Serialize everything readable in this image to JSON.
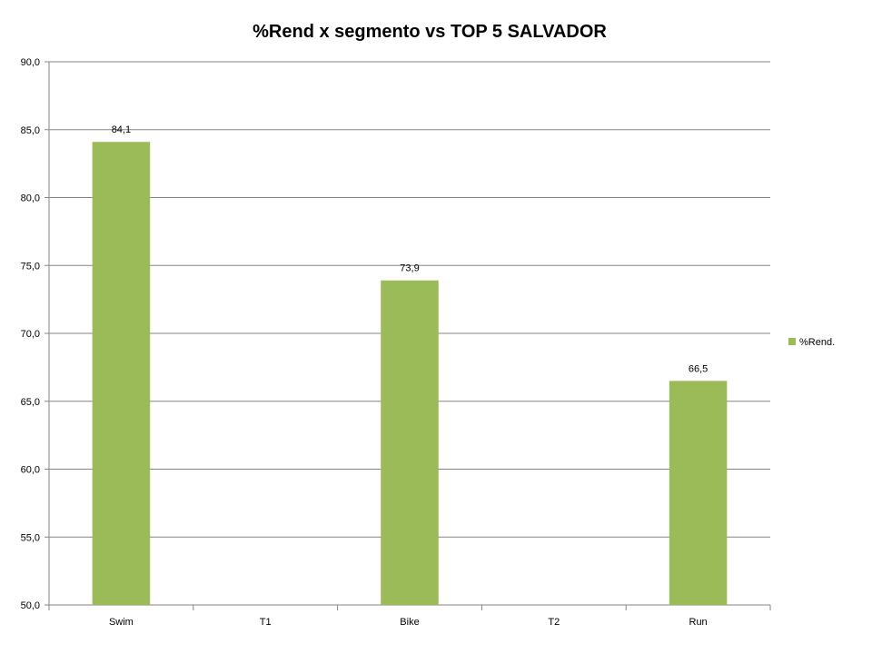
{
  "chart_data": {
    "type": "bar",
    "title": "%Rend x segmento vs TOP 5 SALVADOR",
    "xlabel": "",
    "ylabel": "",
    "categories": [
      "Swim",
      "T1",
      "Bike",
      "T2",
      "Run"
    ],
    "series": [
      {
        "name": "%Rend.",
        "color": "#9BBB59",
        "values": [
          84.1,
          null,
          73.9,
          null,
          66.5
        ],
        "labels": [
          "84,1",
          "",
          "73,9",
          "",
          "66,5"
        ]
      }
    ],
    "ylim": [
      50,
      90
    ],
    "yticks": [
      "50,0",
      "55,0",
      "60,0",
      "65,0",
      "70,0",
      "75,0",
      "80,0",
      "85,0",
      "90,0"
    ],
    "grid": true,
    "legend_position": "right"
  }
}
